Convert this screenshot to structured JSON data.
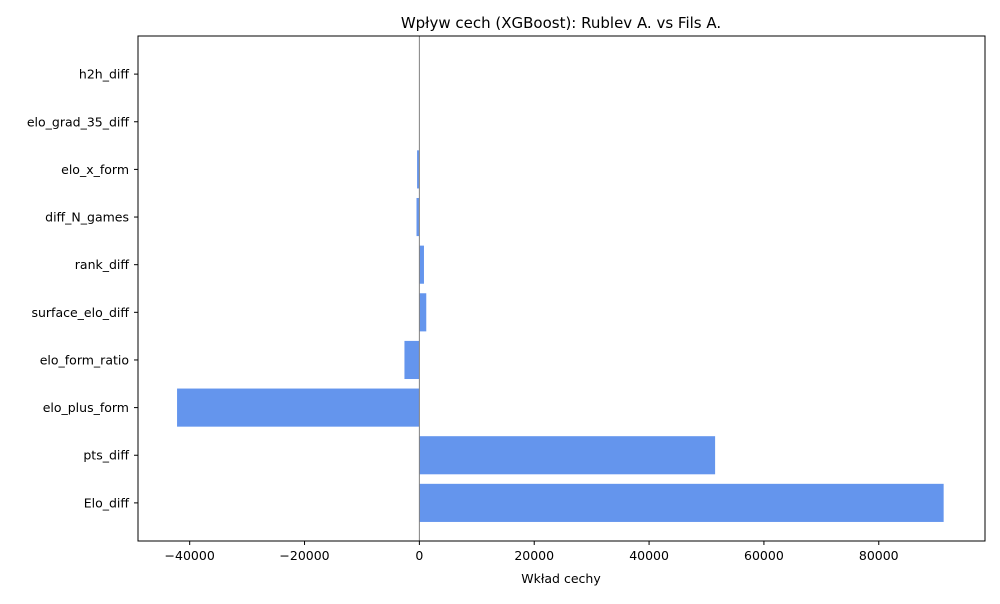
{
  "chart_data": {
    "type": "bar",
    "orientation": "horizontal",
    "title": "Wpływ cech (XGBoost): Rublev A. vs Fils A.",
    "xlabel": "Wkład cechy",
    "ylabel": "",
    "categories": [
      "Elo_diff",
      "pts_diff",
      "elo_plus_form",
      "elo_form_ratio",
      "surface_elo_diff",
      "rank_diff",
      "diff_N_games",
      "elo_x_form",
      "elo_grad_35_diff",
      "h2h_diff"
    ],
    "values": [
      91300,
      51500,
      -42200,
      -2600,
      1200,
      800,
      -500,
      -400,
      0,
      0
    ],
    "xlim": [
      -49000,
      98500
    ],
    "xticks": [
      -40000,
      -20000,
      0,
      20000,
      40000,
      60000,
      80000
    ],
    "xtick_labels": [
      "−40000",
      "−20000",
      "0",
      "20000",
      "40000",
      "60000",
      "80000"
    ],
    "grid": false,
    "legend": "none",
    "bar_color": "#6495ED",
    "zero_line_color": "#808080"
  }
}
